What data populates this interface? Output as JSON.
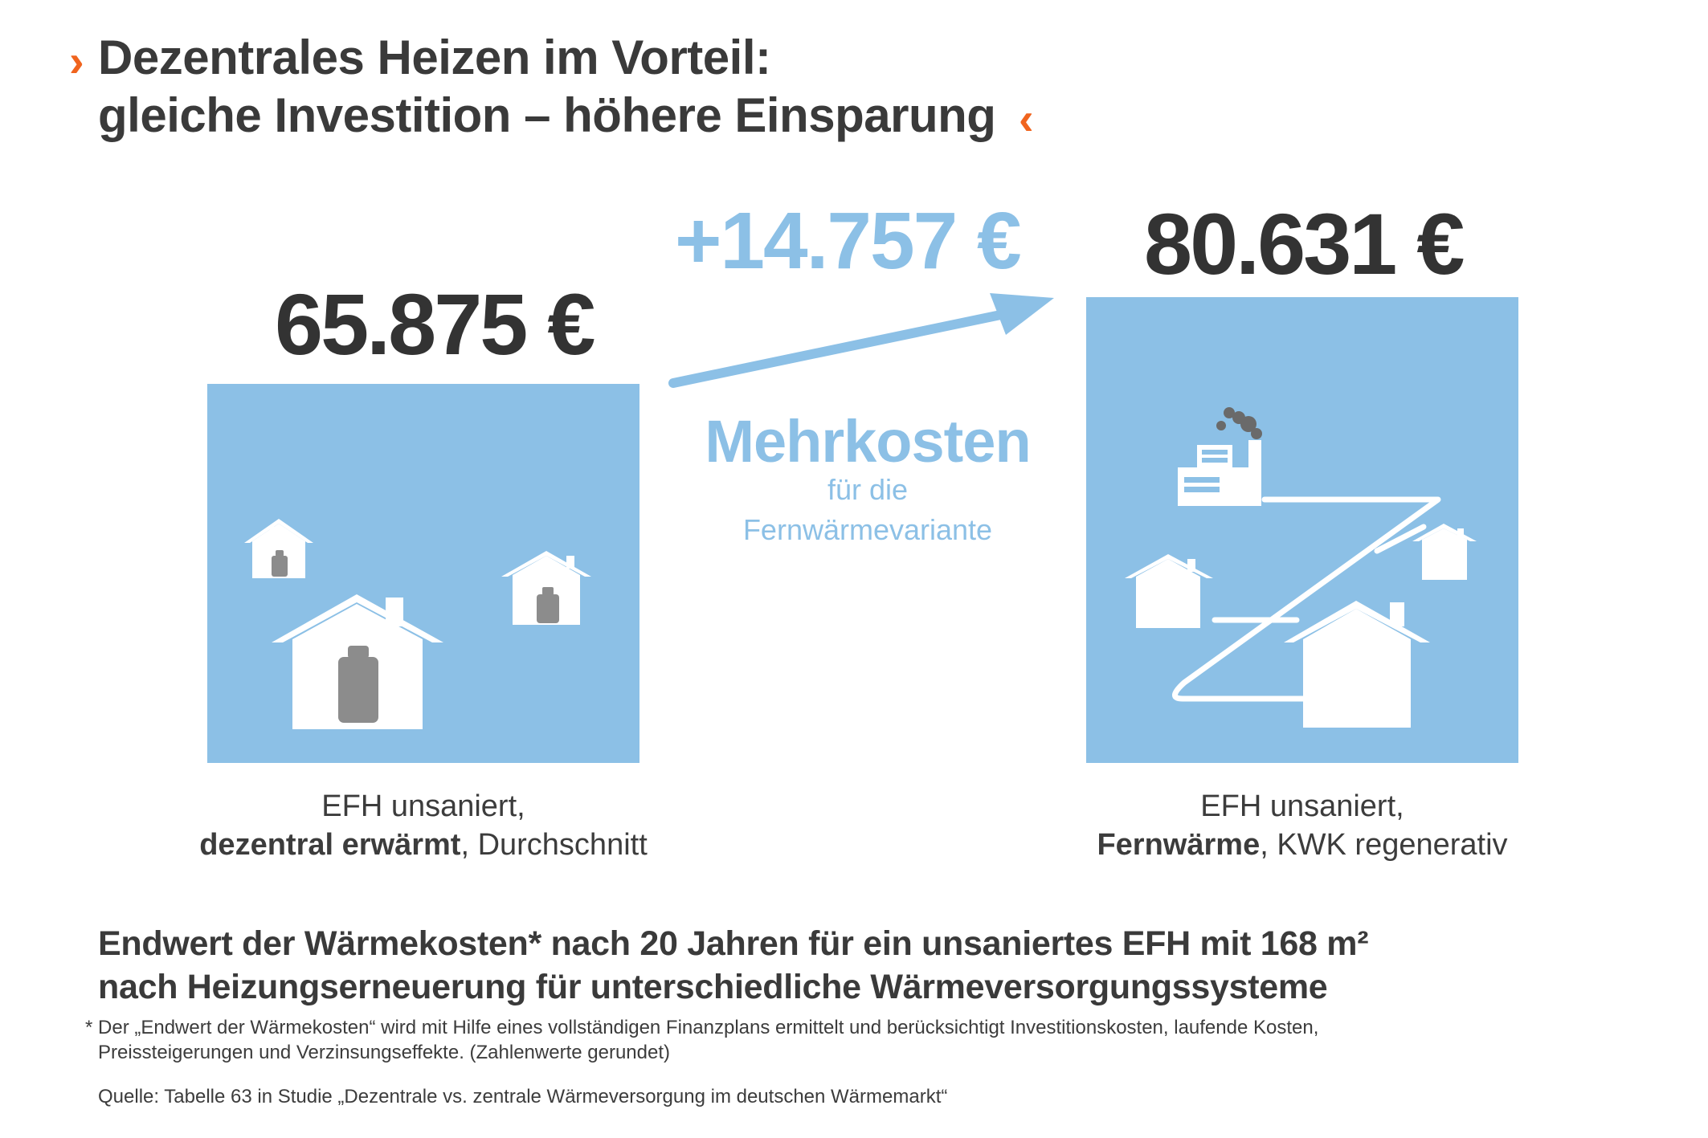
{
  "headline": {
    "line1": "Dezentrales Heizen im Vorteil:",
    "line2": "gleiche Investition – höhere Einsparung",
    "chevron_open": "›",
    "chevron_close": "‹"
  },
  "left": {
    "value": "65.875 €",
    "caption_line1": "EFH unsaniert,",
    "caption_bold": "dezentral erwärmt",
    "caption_rest": ", Durchschnitt"
  },
  "right": {
    "value": "80.631 €",
    "caption_line1": "EFH unsaniert,",
    "caption_bold": "Fernwärme",
    "caption_rest": ", KWK regenerativ"
  },
  "middle": {
    "difference": "+14.757 €",
    "title": "Mehrkosten",
    "subtitle_line1": "für die",
    "subtitle_line2": "Fernwärmevariante"
  },
  "bottom": {
    "heading_line1": "Endwert der Wärmekosten* nach 20 Jahren für ein unsaniertes EFH mit 168 m²",
    "heading_line2": "nach Heizungserneuerung für unterschiedliche Wärmeversorgungssysteme",
    "footnote_line1": "* Der „Endwert der Wärmekosten“ wird mit Hilfe eines vollständigen Finanzplans ermittelt und berücksichtigt Investitionskosten, laufende Kosten,",
    "footnote_line2": "Preissteigerungen und Verzinsungseffekte. (Zahlenwerte gerundet)",
    "source": "Quelle: Tabelle 63 in Studie „Dezentrale vs. zentrale Wärmeversorgung im deutschen Wärmemarkt“"
  },
  "colors": {
    "accent": "#f0641e",
    "panel_blue": "#8cc0e6",
    "text_dark": "#3a3a3a",
    "boiler_grey": "#8c8c8c"
  }
}
